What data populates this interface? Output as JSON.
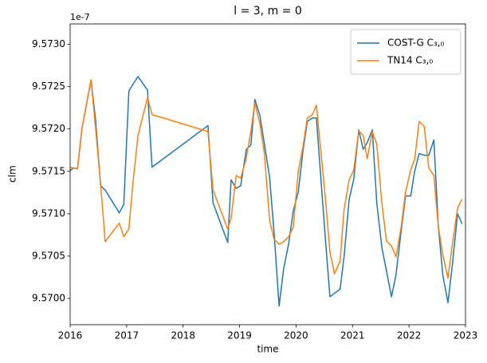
{
  "chart_data": {
    "type": "line",
    "title": "l = 3, m = 0",
    "xlabel": "time",
    "ylabel": "clm",
    "y_offset_label": "1e-7",
    "xlim": [
      2016,
      2023
    ],
    "xticks": [
      2016,
      2017,
      2018,
      2019,
      2020,
      2021,
      2022,
      2023
    ],
    "ylim": [
      9.56969,
      9.57324
    ],
    "yticks": [
      {
        "value": 9.57,
        "label": "9.5700"
      },
      {
        "value": 9.5705,
        "label": "9.5705"
      },
      {
        "value": 9.571,
        "label": "9.5710"
      },
      {
        "value": 9.5715,
        "label": "9.5715"
      },
      {
        "value": 9.572,
        "label": "9.5720"
      },
      {
        "value": 9.5725,
        "label": "9.5725"
      },
      {
        "value": 9.573,
        "label": "9.5730"
      }
    ],
    "legend": "upper right",
    "grid": false,
    "series": [
      {
        "name": "COST-G C₃,₀",
        "color": "#1f77b4",
        "x": [
          2016.0,
          2016.06,
          2016.13,
          2016.21,
          2016.37,
          2016.45,
          2016.54,
          2016.62,
          2016.87,
          2016.95,
          2017.04,
          2017.2,
          2017.37,
          2017.45,
          2018.44,
          2018.53,
          2018.79,
          2018.85,
          2018.94,
          2019.02,
          2019.12,
          2019.2,
          2019.27,
          2019.36,
          2019.53,
          2019.61,
          2019.7,
          2019.78,
          2019.87,
          2019.95,
          2020.04,
          2020.12,
          2020.2,
          2020.29,
          2020.36,
          2020.52,
          2020.6,
          2020.68,
          2020.78,
          2020.85,
          2020.94,
          2021.02,
          2021.11,
          2021.19,
          2021.26,
          2021.35,
          2021.43,
          2021.52,
          2021.69,
          2021.77,
          2021.86,
          2021.94,
          2022.03,
          2022.1,
          2022.18,
          2022.27,
          2022.35,
          2022.44,
          2022.52,
          2022.6,
          2022.69,
          2022.77,
          2022.86,
          2022.94
        ],
        "values": [
          9.57151,
          9.57154,
          9.57153,
          9.57201,
          9.57258,
          9.57211,
          9.57133,
          9.57128,
          9.57101,
          9.57111,
          9.57245,
          9.57262,
          9.57246,
          9.57155,
          9.57204,
          9.57113,
          9.57066,
          9.5714,
          9.5713,
          9.57133,
          9.57176,
          9.57181,
          9.57235,
          9.57216,
          9.57144,
          9.57079,
          9.56991,
          9.57035,
          9.57065,
          9.57103,
          9.57126,
          9.57173,
          9.57209,
          9.57213,
          9.57213,
          9.5707,
          9.57002,
          9.57006,
          9.57011,
          9.57049,
          9.57117,
          9.5714,
          9.57199,
          9.57176,
          9.57184,
          9.57199,
          9.57112,
          9.5706,
          9.57002,
          9.57028,
          9.57079,
          9.57121,
          9.57121,
          9.5715,
          9.57171,
          9.57169,
          9.57169,
          9.57187,
          9.57084,
          9.57027,
          9.56995,
          9.57041,
          9.571,
          9.57088
        ]
      },
      {
        "name": "TN14 C₃,₀",
        "color": "#ff7f0e",
        "x": [
          2016.0,
          2016.06,
          2016.13,
          2016.21,
          2016.37,
          2016.45,
          2016.54,
          2016.62,
          2016.87,
          2016.95,
          2017.04,
          2017.11,
          2017.2,
          2017.37,
          2017.45,
          2018.44,
          2018.53,
          2018.79,
          2018.85,
          2018.94,
          2019.02,
          2019.12,
          2019.2,
          2019.27,
          2019.36,
          2019.44,
          2019.53,
          2019.61,
          2019.7,
          2019.78,
          2019.87,
          2019.95,
          2020.04,
          2020.12,
          2020.2,
          2020.29,
          2020.36,
          2020.52,
          2020.6,
          2020.68,
          2020.78,
          2020.85,
          2020.94,
          2021.02,
          2021.11,
          2021.19,
          2021.26,
          2021.35,
          2021.43,
          2021.52,
          2021.6,
          2021.69,
          2021.77,
          2021.86,
          2021.94,
          2022.03,
          2022.1,
          2022.18,
          2022.27,
          2022.35,
          2022.44,
          2022.52,
          2022.6,
          2022.69,
          2022.77,
          2022.86,
          2022.94
        ],
        "values": [
          9.57155,
          9.57154,
          9.57153,
          9.57201,
          9.57258,
          9.57201,
          9.57135,
          9.57067,
          9.57089,
          9.57073,
          9.57082,
          9.57135,
          9.57192,
          9.57237,
          9.57217,
          9.57197,
          9.57128,
          9.57082,
          9.57095,
          9.57145,
          9.57142,
          9.57166,
          9.57197,
          9.57231,
          9.57206,
          9.57171,
          9.57093,
          9.5707,
          9.57064,
          9.57067,
          9.57073,
          9.57084,
          9.5715,
          9.57178,
          9.57213,
          9.57217,
          9.57228,
          9.57118,
          9.57055,
          9.57029,
          9.57044,
          9.57105,
          9.5714,
          9.57151,
          9.57198,
          9.57192,
          9.57165,
          9.57197,
          9.57182,
          9.57112,
          9.57068,
          9.57062,
          9.57049,
          9.57084,
          9.57126,
          9.57152,
          9.57164,
          9.57209,
          9.57203,
          9.57154,
          9.57145,
          9.57084,
          9.57051,
          9.57024,
          9.57065,
          9.57107,
          9.57117
        ]
      }
    ]
  }
}
